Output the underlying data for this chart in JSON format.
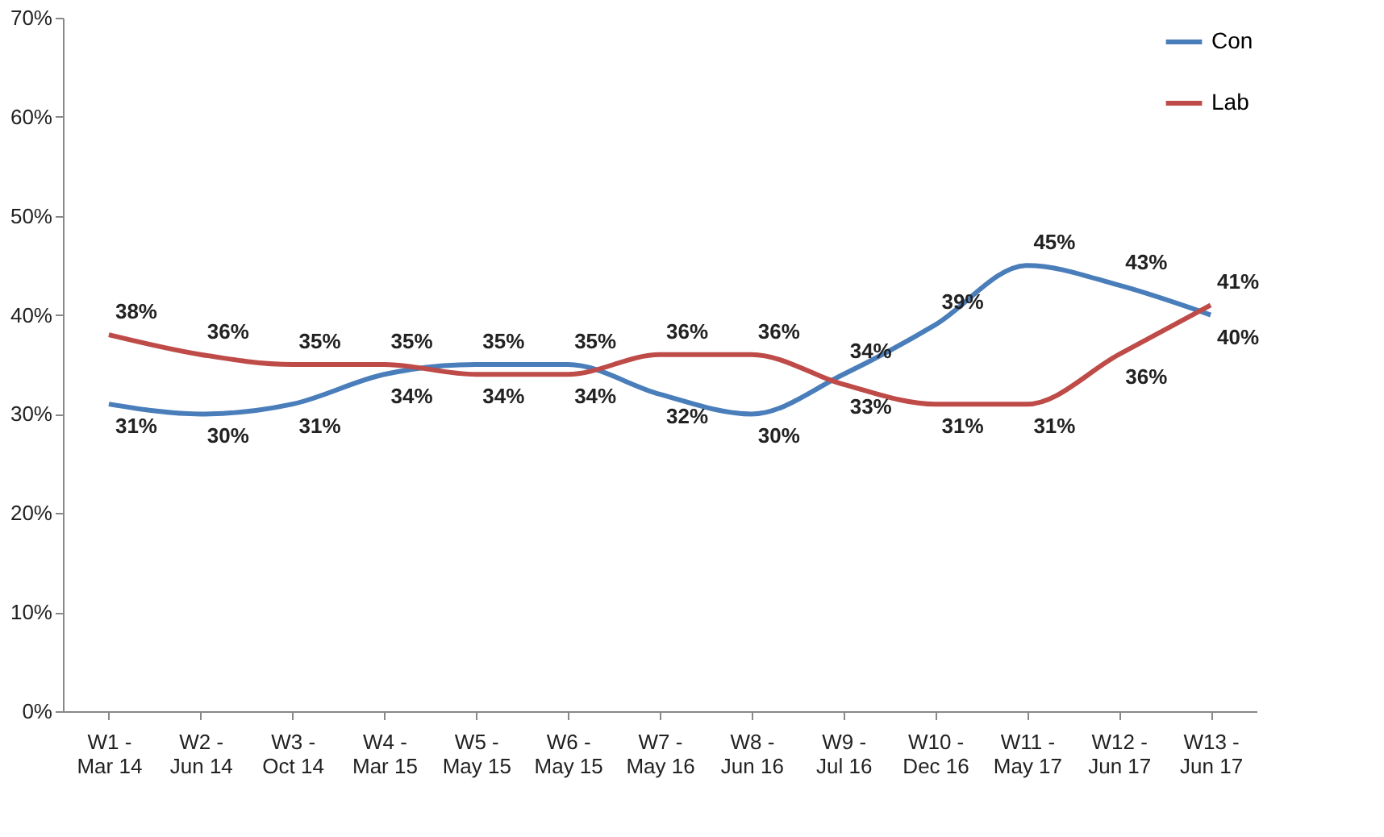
{
  "chart_data": {
    "type": "line",
    "categories": [
      "W1 - Mar 14",
      "W2 - Jun 14",
      "W3 - Oct 14",
      "W4 - Mar 15",
      "W5 - May 15",
      "W6 - May 15",
      "W7 - May 16",
      "W8 - Jun 16",
      "W9 - Jul 16",
      "W10 - Dec 16",
      "W11 - May 17",
      "W12 - Jun 17",
      "W13 - Jun 17"
    ],
    "series": [
      {
        "name": "Con",
        "color": "#4a7ebb",
        "values": [
          31,
          30,
          31,
          34,
          35,
          35,
          32,
          30,
          34,
          39,
          45,
          43,
          40
        ],
        "value_labels": [
          "31%",
          "30%",
          "31%",
          "34%",
          "35%",
          "35%",
          "32%",
          "30%",
          "34%",
          "39%",
          "45%",
          "43%",
          "40%"
        ]
      },
      {
        "name": "Lab",
        "color": "#be4b48",
        "values": [
          38,
          36,
          35,
          35,
          34,
          34,
          36,
          36,
          33,
          31,
          31,
          36,
          41
        ],
        "value_labels": [
          "38%",
          "36%",
          "35%",
          "35%",
          "34%",
          "34%",
          "36%",
          "36%",
          "33%",
          "31%",
          "31%",
          "36%",
          "41%"
        ]
      }
    ],
    "ylim": [
      0,
      70
    ],
    "yticks": [
      {
        "value": 0,
        "label": "0%"
      },
      {
        "value": 10,
        "label": "10%"
      },
      {
        "value": 20,
        "label": "20%"
      },
      {
        "value": 30,
        "label": "30%"
      },
      {
        "value": 40,
        "label": "40%"
      },
      {
        "value": 50,
        "label": "50%"
      },
      {
        "value": 60,
        "label": "60%"
      },
      {
        "value": 70,
        "label": "70%"
      }
    ],
    "grid": false,
    "legend": "top right",
    "marker": "none",
    "line_style": "solid"
  }
}
